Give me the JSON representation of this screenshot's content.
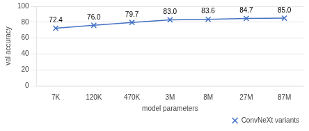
{
  "chart_data": {
    "type": "line",
    "categories": [
      "7K",
      "120K",
      "470K",
      "3M",
      "8M",
      "27M",
      "87M"
    ],
    "series": [
      {
        "name": "ConvNeXt variants",
        "color": "#4472C4",
        "marker": "x",
        "values": [
          72.4,
          76.0,
          79.7,
          83.0,
          83.6,
          84.7,
          85.0
        ],
        "value_labels": [
          "72.4",
          "76.0",
          "79.7",
          "83.0",
          "83.6",
          "84.7",
          "85.0"
        ]
      }
    ],
    "data_labels": true,
    "xlabel": "model parameters",
    "ylabel": "val accuracy",
    "ylim": [
      0,
      100
    ],
    "yticks": [
      0,
      20,
      40,
      60,
      80,
      100
    ],
    "grid": true,
    "legend": "lower right"
  }
}
